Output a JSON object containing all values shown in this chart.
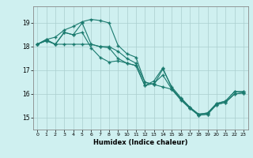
{
  "xlabel": "Humidex (Indice chaleur)",
  "xlim": [
    -0.5,
    23.5
  ],
  "ylim": [
    14.5,
    19.7
  ],
  "yticks": [
    15,
    16,
    17,
    18,
    19
  ],
  "xticks": [
    0,
    1,
    2,
    3,
    4,
    5,
    6,
    7,
    8,
    9,
    10,
    11,
    12,
    13,
    14,
    15,
    16,
    17,
    18,
    19,
    20,
    21,
    22,
    23
  ],
  "bg_color": "#cff0f0",
  "line_color": "#1a7a6e",
  "grid_color": "#aacece",
  "lines": [
    {
      "x": [
        0,
        1,
        2,
        3,
        4,
        5,
        6,
        7,
        8,
        9,
        10,
        11,
        12,
        13,
        14,
        15,
        16,
        17,
        18,
        19,
        20,
        21,
        22,
        23
      ],
      "y": [
        18.1,
        18.3,
        18.1,
        18.1,
        18.1,
        18.1,
        18.1,
        18.0,
        18.0,
        17.8,
        17.5,
        17.3,
        16.5,
        16.4,
        16.3,
        16.2,
        15.8,
        15.4,
        15.15,
        15.2,
        15.6,
        15.7,
        16.1,
        16.1
      ]
    },
    {
      "x": [
        0,
        1,
        2,
        3,
        4,
        5,
        6,
        7,
        8,
        9,
        10,
        11,
        12,
        13,
        14,
        15,
        16,
        17,
        18,
        19,
        20,
        21,
        22,
        23
      ],
      "y": [
        18.1,
        18.3,
        18.4,
        18.7,
        18.85,
        19.05,
        19.15,
        19.1,
        19.0,
        18.05,
        17.7,
        17.55,
        16.5,
        16.4,
        17.05,
        16.3,
        15.85,
        15.45,
        15.15,
        15.2,
        15.6,
        15.7,
        16.1,
        16.1
      ]
    },
    {
      "x": [
        0,
        1,
        2,
        3,
        4,
        5,
        6,
        7,
        8,
        9,
        10,
        11,
        12,
        13,
        14,
        15,
        16,
        17,
        18,
        19,
        20,
        21,
        22,
        23
      ],
      "y": [
        18.1,
        18.25,
        18.1,
        18.6,
        18.5,
        19.0,
        18.1,
        18.0,
        17.95,
        17.5,
        17.3,
        17.2,
        16.35,
        16.45,
        16.8,
        16.2,
        15.75,
        15.4,
        15.1,
        15.15,
        15.55,
        15.65,
        16.0,
        16.05
      ]
    },
    {
      "x": [
        0,
        1,
        2,
        3,
        4,
        5,
        6,
        7,
        8,
        9,
        10,
        11,
        12,
        13,
        14,
        15,
        16,
        17,
        18,
        19,
        20,
        21,
        22,
        23
      ],
      "y": [
        18.1,
        18.25,
        18.1,
        18.6,
        18.5,
        18.6,
        17.95,
        17.55,
        17.35,
        17.4,
        17.3,
        17.2,
        16.35,
        16.55,
        17.1,
        16.25,
        15.8,
        15.45,
        15.1,
        15.15,
        15.55,
        15.65,
        16.0,
        16.05
      ]
    }
  ]
}
